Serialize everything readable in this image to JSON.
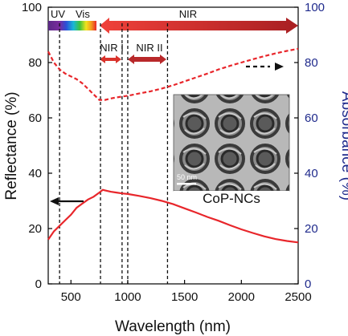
{
  "chart_data": {
    "type": "line",
    "xlabel": "Wavelength (nm)",
    "ylabel": "Reflectance (%)",
    "ylabel_right": "Absorbance (%)",
    "xlim": [
      300,
      2500
    ],
    "ylim": [
      0,
      100
    ],
    "ylim_right": [
      0,
      100
    ],
    "x_ticks": [
      500,
      1000,
      1500,
      2000,
      2500
    ],
    "y_ticks": [
      0,
      20,
      40,
      60,
      80,
      100
    ],
    "y_ticks_right": [
      0,
      20,
      40,
      60,
      80,
      100
    ],
    "grid": false,
    "series": [
      {
        "axis": "left",
        "style": "solid",
        "color": "#e8262b",
        "x": [
          300,
          350,
          400,
          450,
          500,
          550,
          600,
          650,
          700,
          750,
          780,
          800,
          850,
          900,
          950,
          1000,
          1100,
          1200,
          1300,
          1400,
          1500,
          1600,
          1700,
          1800,
          1900,
          2000,
          2100,
          2200,
          2300,
          2400,
          2500
        ],
        "y": [
          16,
          19,
          21,
          23,
          25,
          27.5,
          29,
          30.5,
          31.5,
          33,
          34,
          33.8,
          33.3,
          33,
          32.7,
          32.5,
          31.8,
          31,
          30,
          28.8,
          27.3,
          25.8,
          24.2,
          22.8,
          21.2,
          19.7,
          18.4,
          17.2,
          16.2,
          15.5,
          15
        ]
      },
      {
        "axis": "right",
        "style": "dashed",
        "color": "#e8262b",
        "x": [
          300,
          350,
          400,
          450,
          500,
          550,
          600,
          650,
          700,
          750,
          800,
          850,
          900,
          1000,
          1100,
          1200,
          1300,
          1400,
          1500,
          1600,
          1700,
          1800,
          1900,
          2000,
          2100,
          2200,
          2300,
          2400,
          2500
        ],
        "y": [
          84,
          80,
          77.5,
          76,
          75,
          74,
          72.5,
          70.5,
          68.5,
          66.5,
          66.5,
          67,
          67.4,
          68,
          68.8,
          69.6,
          70.6,
          71.8,
          73.2,
          74.6,
          76,
          77.5,
          78.8,
          80,
          81.2,
          82.3,
          83.3,
          84.2,
          85
        ]
      }
    ],
    "vlines": [
      400,
      760,
      950,
      1000,
      1350
    ],
    "spectrum_bands": [
      {
        "label": "UV",
        "from": 300,
        "to": 400
      },
      {
        "label": "Vis",
        "from": 400,
        "to": 760
      },
      {
        "label": "NIR",
        "from": 760,
        "to": 2500
      },
      {
        "label": "NIR I",
        "from": 760,
        "to": 950
      },
      {
        "label": "NIR II",
        "from": 1000,
        "to": 1350
      }
    ],
    "inset": {
      "label": "CoP-NCs",
      "scale_bar": "50 nm"
    }
  },
  "colors": {
    "curve": "#e8262b",
    "right_axis": "#1f2a8c",
    "nir_arrow": "#d9322b",
    "nir_sub_arrow": "#b8282a"
  }
}
